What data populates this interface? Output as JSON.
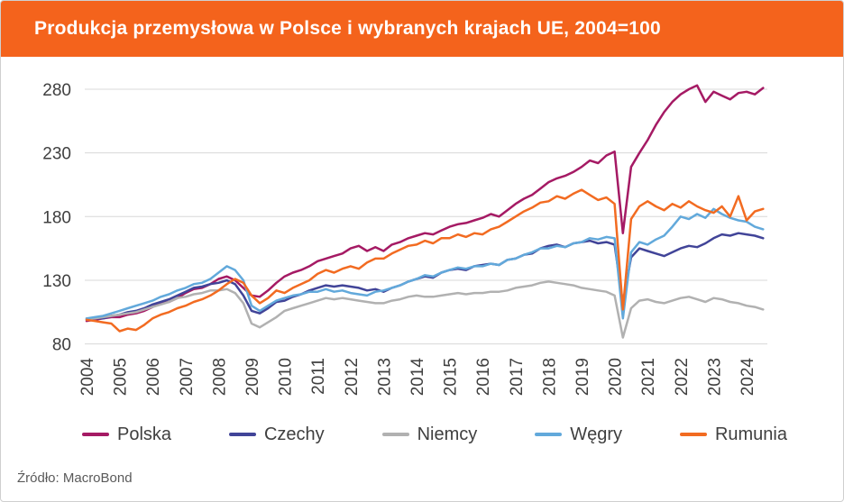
{
  "header": {
    "title": "Produkcja przemysłowa w Polsce i wybranych krajach UE, 2004=100",
    "bg_color": "#f4631c",
    "text_color": "#ffffff"
  },
  "source": {
    "label": "Źródło: MacroBond"
  },
  "chart_data": {
    "type": "line",
    "title": "Produkcja przemysłowa w Polsce i wybranych krajach UE, 2004=100",
    "xlabel": "",
    "ylabel": "",
    "grid": true,
    "legend_position": "bottom",
    "y_ticks": [
      80,
      130,
      180,
      230,
      280
    ],
    "ylim": [
      74,
      292
    ],
    "x_ticks": [
      2004,
      2005,
      2006,
      2007,
      2008,
      2009,
      2010,
      2011,
      2012,
      2013,
      2014,
      2015,
      2016,
      2017,
      2018,
      2019,
      2020,
      2021,
      2022,
      2023,
      2024
    ],
    "xlim": [
      2004,
      2024.7
    ],
    "x": [
      2004,
      2004.25,
      2004.5,
      2004.75,
      2005,
      2005.25,
      2005.5,
      2005.75,
      2006,
      2006.25,
      2006.5,
      2006.75,
      2007,
      2007.25,
      2007.5,
      2007.75,
      2008,
      2008.25,
      2008.5,
      2008.75,
      2009,
      2009.25,
      2009.5,
      2009.75,
      2010,
      2010.25,
      2010.5,
      2010.75,
      2011,
      2011.25,
      2011.5,
      2011.75,
      2012,
      2012.25,
      2012.5,
      2012.75,
      2013,
      2013.25,
      2013.5,
      2013.75,
      2014,
      2014.25,
      2014.5,
      2014.75,
      2015,
      2015.25,
      2015.5,
      2015.75,
      2016,
      2016.25,
      2016.5,
      2016.75,
      2017,
      2017.25,
      2017.5,
      2017.75,
      2018,
      2018.25,
      2018.5,
      2018.75,
      2019,
      2019.25,
      2019.5,
      2019.75,
      2020,
      2020.25,
      2020.5,
      2020.75,
      2021,
      2021.25,
      2021.5,
      2021.75,
      2022,
      2022.25,
      2022.5,
      2022.75,
      2023,
      2023.25,
      2023.5,
      2023.75,
      2024,
      2024.25,
      2024.5
    ],
    "series": [
      {
        "name": "Polska",
        "color": "#a51a64",
        "values": [
          98,
          99,
          100,
          101,
          101,
          103,
          104,
          106,
          109,
          112,
          113,
          116,
          120,
          123,
          124,
          127,
          131,
          133,
          130,
          124,
          118,
          117,
          122,
          128,
          133,
          136,
          138,
          141,
          145,
          147,
          149,
          151,
          155,
          157,
          153,
          156,
          153,
          158,
          160,
          163,
          165,
          167,
          166,
          169,
          172,
          174,
          175,
          177,
          179,
          182,
          180,
          185,
          190,
          194,
          197,
          202,
          207,
          210,
          212,
          215,
          219,
          224,
          222,
          228,
          231,
          167,
          219,
          230,
          240,
          252,
          262,
          270,
          276,
          280,
          283,
          270,
          278,
          275,
          272,
          277,
          278,
          276,
          281
        ]
      },
      {
        "name": "Czechy",
        "color": "#414498",
        "values": [
          99,
          100,
          100,
          102,
          103,
          105,
          106,
          108,
          111,
          113,
          115,
          118,
          121,
          124,
          125,
          127,
          128,
          130,
          127,
          118,
          106,
          104,
          108,
          113,
          114,
          117,
          119,
          122,
          124,
          126,
          125,
          126,
          125,
          124,
          122,
          123,
          121,
          124,
          126,
          129,
          131,
          133,
          132,
          136,
          138,
          139,
          138,
          141,
          142,
          143,
          142,
          146,
          147,
          150,
          151,
          155,
          157,
          158,
          156,
          159,
          160,
          161,
          159,
          160,
          158,
          112,
          148,
          155,
          153,
          151,
          149,
          152,
          155,
          157,
          156,
          159,
          163,
          166,
          165,
          167,
          166,
          165,
          163
        ]
      },
      {
        "name": "Niemcy",
        "color": "#b1b1b1",
        "values": [
          100,
          100,
          101,
          102,
          103,
          104,
          105,
          107,
          109,
          111,
          113,
          116,
          117,
          119,
          120,
          122,
          122,
          123,
          120,
          112,
          96,
          93,
          97,
          101,
          106,
          108,
          110,
          112,
          114,
          116,
          115,
          116,
          115,
          114,
          113,
          112,
          112,
          114,
          115,
          117,
          118,
          117,
          117,
          118,
          119,
          120,
          119,
          120,
          120,
          121,
          121,
          122,
          124,
          125,
          126,
          128,
          129,
          128,
          127,
          126,
          124,
          123,
          122,
          121,
          118,
          85,
          108,
          114,
          115,
          113,
          112,
          114,
          116,
          117,
          115,
          113,
          116,
          115,
          113,
          112,
          110,
          109,
          107
        ]
      },
      {
        "name": "Węgry",
        "color": "#62a9db",
        "values": [
          100,
          101,
          102,
          104,
          106,
          108,
          110,
          112,
          114,
          117,
          119,
          122,
          124,
          127,
          128,
          131,
          136,
          141,
          138,
          130,
          110,
          106,
          110,
          114,
          116,
          118,
          119,
          121,
          121,
          123,
          121,
          122,
          120,
          119,
          118,
          121,
          122,
          124,
          126,
          129,
          131,
          134,
          133,
          136,
          138,
          140,
          139,
          141,
          141,
          143,
          142,
          146,
          147,
          150,
          152,
          155,
          155,
          157,
          156,
          159,
          160,
          163,
          162,
          164,
          163,
          100,
          152,
          160,
          158,
          162,
          165,
          172,
          180,
          178,
          182,
          179,
          186,
          182,
          179,
          177,
          176,
          172,
          170
        ]
      },
      {
        "name": "Rumunia",
        "color": "#f26b21",
        "values": [
          99,
          98,
          97,
          96,
          90,
          92,
          91,
          95,
          100,
          103,
          105,
          108,
          110,
          113,
          115,
          118,
          122,
          127,
          131,
          128,
          118,
          112,
          116,
          122,
          120,
          124,
          127,
          130,
          135,
          138,
          136,
          139,
          141,
          139,
          144,
          147,
          147,
          151,
          154,
          157,
          158,
          161,
          159,
          163,
          163,
          166,
          164,
          167,
          166,
          170,
          172,
          176,
          180,
          184,
          187,
          191,
          192,
          196,
          194,
          198,
          201,
          197,
          193,
          195,
          190,
          107,
          178,
          188,
          192,
          188,
          185,
          190,
          187,
          192,
          188,
          185,
          183,
          188,
          180,
          196,
          177,
          184,
          186
        ]
      }
    ]
  }
}
